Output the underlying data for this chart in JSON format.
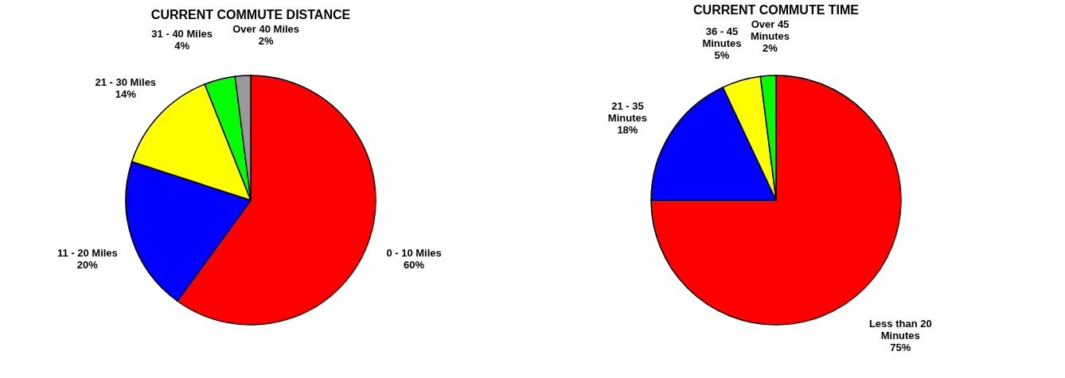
{
  "chart_data": [
    {
      "type": "pie",
      "title": "CURRENT COMMUTE DISTANCE",
      "categories": [
        "0 - 10 Miles",
        "11 - 20 Miles",
        "21 - 30 Miles",
        "31 - 40 Miles",
        "Over 40 Miles"
      ],
      "values": [
        60,
        20,
        14,
        4,
        2
      ],
      "colors": [
        "#ff0000",
        "#0000ff",
        "#ffff00",
        "#00ff00",
        "#999999"
      ],
      "value_labels": [
        "60%",
        "20%",
        "14%",
        "4%",
        "2%"
      ]
    },
    {
      "type": "pie",
      "title": "CURRENT COMMUTE TIME",
      "categories": [
        "Less than 20 Minutes",
        "21 - 35 Minutes",
        "36 - 45 Minutes",
        "Over 45 Minutes"
      ],
      "values": [
        75,
        18,
        5,
        2
      ],
      "colors": [
        "#ff0000",
        "#0000ff",
        "#ffff00",
        "#00ff00"
      ],
      "value_labels": [
        "75%",
        "18%",
        "5%",
        "2%"
      ]
    }
  ]
}
